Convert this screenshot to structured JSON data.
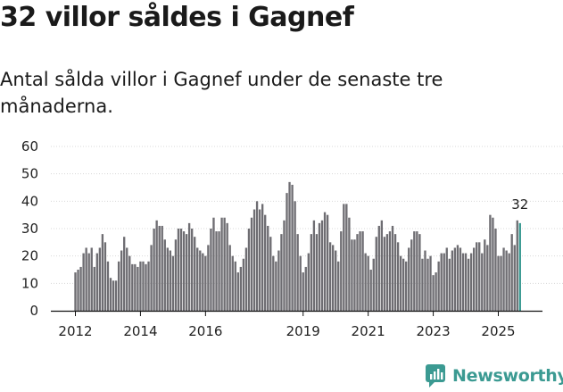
{
  "title": "32 villor såldes i Gagnef",
  "subtitle": "Antal sålda villor i Gagnef under de senaste tre månaderna.",
  "brand": {
    "name": "Newsworthy",
    "icon": "newsworthy-logo-icon",
    "color": "#3b9a92"
  },
  "colors": {
    "bar": "#6e6d72",
    "highlight": "#3b9a92"
  },
  "chart_data": {
    "type": "bar",
    "title": "32 villor såldes i Gagnef",
    "xlabel": "",
    "ylabel": "",
    "ylim": [
      0,
      60
    ],
    "yticks": [
      "0",
      "10",
      "20",
      "30",
      "40",
      "50",
      "60"
    ],
    "xticks": [
      {
        "label": "2012",
        "year": 2012
      },
      {
        "label": "2014",
        "year": 2014
      },
      {
        "label": "2016",
        "year": 2016
      },
      {
        "label": "2019",
        "year": 2019
      },
      {
        "label": "2021",
        "year": 2021
      },
      {
        "label": "2023",
        "year": 2023
      },
      {
        "label": "2025",
        "year": 2025
      }
    ],
    "start": "2012-01",
    "end": "2025-09",
    "annotation": {
      "label": "32",
      "value": 32
    },
    "values": [
      14,
      15,
      16,
      21,
      23,
      21,
      23,
      16,
      21,
      23,
      28,
      25,
      18,
      12,
      11,
      11,
      18,
      22,
      27,
      23,
      20,
      17,
      17,
      16,
      18,
      18,
      17,
      18,
      24,
      30,
      33,
      31,
      31,
      26,
      23,
      22,
      20,
      26,
      30,
      30,
      29,
      28,
      32,
      30,
      27,
      23,
      22,
      21,
      20,
      24,
      30,
      34,
      29,
      29,
      34,
      34,
      32,
      24,
      20,
      18,
      14,
      16,
      19,
      23,
      30,
      34,
      37,
      40,
      37,
      39,
      35,
      31,
      27,
      20,
      18,
      22,
      28,
      33,
      43,
      47,
      46,
      40,
      28,
      20,
      14,
      16,
      21,
      28,
      33,
      28,
      32,
      33,
      36,
      35,
      25,
      24,
      22,
      18,
      29,
      39,
      39,
      34,
      26,
      26,
      28,
      29,
      29,
      21,
      20,
      15,
      19,
      27,
      31,
      33,
      27,
      28,
      29,
      31,
      28,
      25,
      20,
      19,
      18,
      23,
      26,
      29,
      29,
      28,
      19,
      22,
      19,
      20,
      13,
      14,
      18,
      21,
      21,
      23,
      19,
      22,
      23,
      24,
      23,
      21,
      21,
      19,
      21,
      23,
      25,
      25,
      21,
      26,
      24,
      35,
      34,
      30,
      20,
      20,
      23,
      22,
      21,
      28,
      24,
      33,
      32
    ]
  }
}
